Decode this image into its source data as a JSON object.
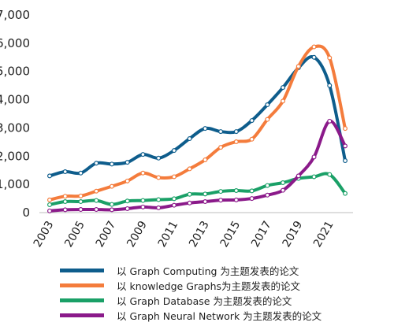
{
  "chart_data": {
    "type": "line",
    "x": [
      2003,
      2004,
      2005,
      2006,
      2007,
      2008,
      2009,
      2010,
      2011,
      2012,
      2013,
      2014,
      2015,
      2016,
      2017,
      2018,
      2019,
      2020,
      2021,
      2022
    ],
    "x_tick_labels": [
      "2003",
      "2005",
      "2007",
      "2009",
      "2011",
      "2013",
      "2015",
      "2017",
      "2019",
      "2021"
    ],
    "y_tick_labels": [
      "0",
      "1,000",
      "2,000",
      "3,000",
      "4,000",
      "5,000",
      "6,000",
      "7,000"
    ],
    "ylim": [
      0,
      7000
    ],
    "xlim": [
      2003,
      2022
    ],
    "grid": false,
    "legend_placement": "bottom",
    "series": [
      {
        "name": "以 Graph Computing 为主题发表的论文",
        "color": "#0e5d8c",
        "values": [
          1300,
          1450,
          1400,
          1750,
          1720,
          1780,
          2060,
          1930,
          2200,
          2620,
          2980,
          2870,
          2870,
          3260,
          3820,
          4430,
          5130,
          5500,
          4500,
          1840
        ]
      },
      {
        "name": "以 knowledge Graphs为主题发表的论文",
        "color": "#f47c3c",
        "values": [
          450,
          580,
          590,
          760,
          930,
          1120,
          1400,
          1240,
          1270,
          1550,
          1870,
          2310,
          2510,
          2600,
          3300,
          3950,
          5180,
          5870,
          5480,
          2980
        ]
      },
      {
        "name": "以 Graph Database 为主题发表的论文",
        "color": "#1aa067",
        "values": [
          280,
          390,
          390,
          430,
          290,
          410,
          430,
          460,
          490,
          650,
          660,
          750,
          780,
          770,
          960,
          1060,
          1210,
          1270,
          1350,
          680
        ]
      },
      {
        "name": "以 Graph Neural Network 为主题发表的论文",
        "color": "#8b1a8a",
        "values": [
          60,
          100,
          110,
          110,
          100,
          140,
          200,
          170,
          260,
          340,
          390,
          440,
          450,
          500,
          620,
          790,
          1300,
          1970,
          3240,
          2360
        ]
      }
    ]
  }
}
